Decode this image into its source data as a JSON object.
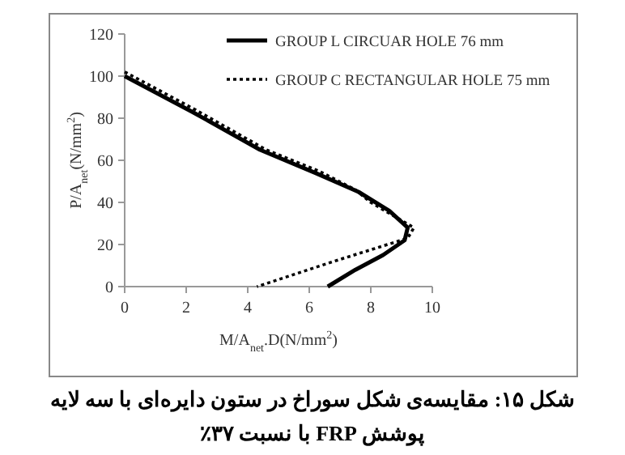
{
  "chart_data": {
    "type": "line",
    "xlabel": "M/A$_{net}$.D(N/mm$^{2}$)",
    "ylabel": "P/A$_{net}$(N/mm$^{2}$)",
    "xlim": [
      0,
      10
    ],
    "xticks": [
      0,
      2,
      4,
      6,
      8,
      10
    ],
    "ylim": [
      0,
      120
    ],
    "yticks": [
      0,
      20,
      40,
      60,
      80,
      100,
      120
    ],
    "grid": false,
    "legend": "top right",
    "marker": "none",
    "series": [
      {
        "name": "GROUP L CIRCUAR  HOLE 76 mm",
        "color": "#000000",
        "line_style": "solid",
        "x": [
          0,
          2.2,
          4.4,
          6.2,
          7.6,
          8.6,
          9.2,
          9.1,
          8.4,
          7.5,
          6.6
        ],
        "values": [
          100,
          83,
          65,
          54,
          45,
          36,
          28,
          22,
          15,
          8,
          0
        ]
      },
      {
        "name": "GROUP C RECTANGULAR HOLE 75 mm",
        "color": "#000000",
        "line_style": "dotted",
        "x": [
          0,
          2.3,
          4.6,
          6.3,
          7.5,
          8.0,
          9.4,
          9.2,
          6.8,
          4.3
        ],
        "values": [
          102,
          84,
          65,
          55,
          46,
          40,
          28,
          23,
          12,
          0
        ]
      }
    ],
    "annotations": [
      "شکل ۱۵: مقایسه‌ی شکل سوراخ در ستون دایره‌ای با سه لایه",
      "پوشش FRP با نسبت ۳۷٪"
    ]
  }
}
